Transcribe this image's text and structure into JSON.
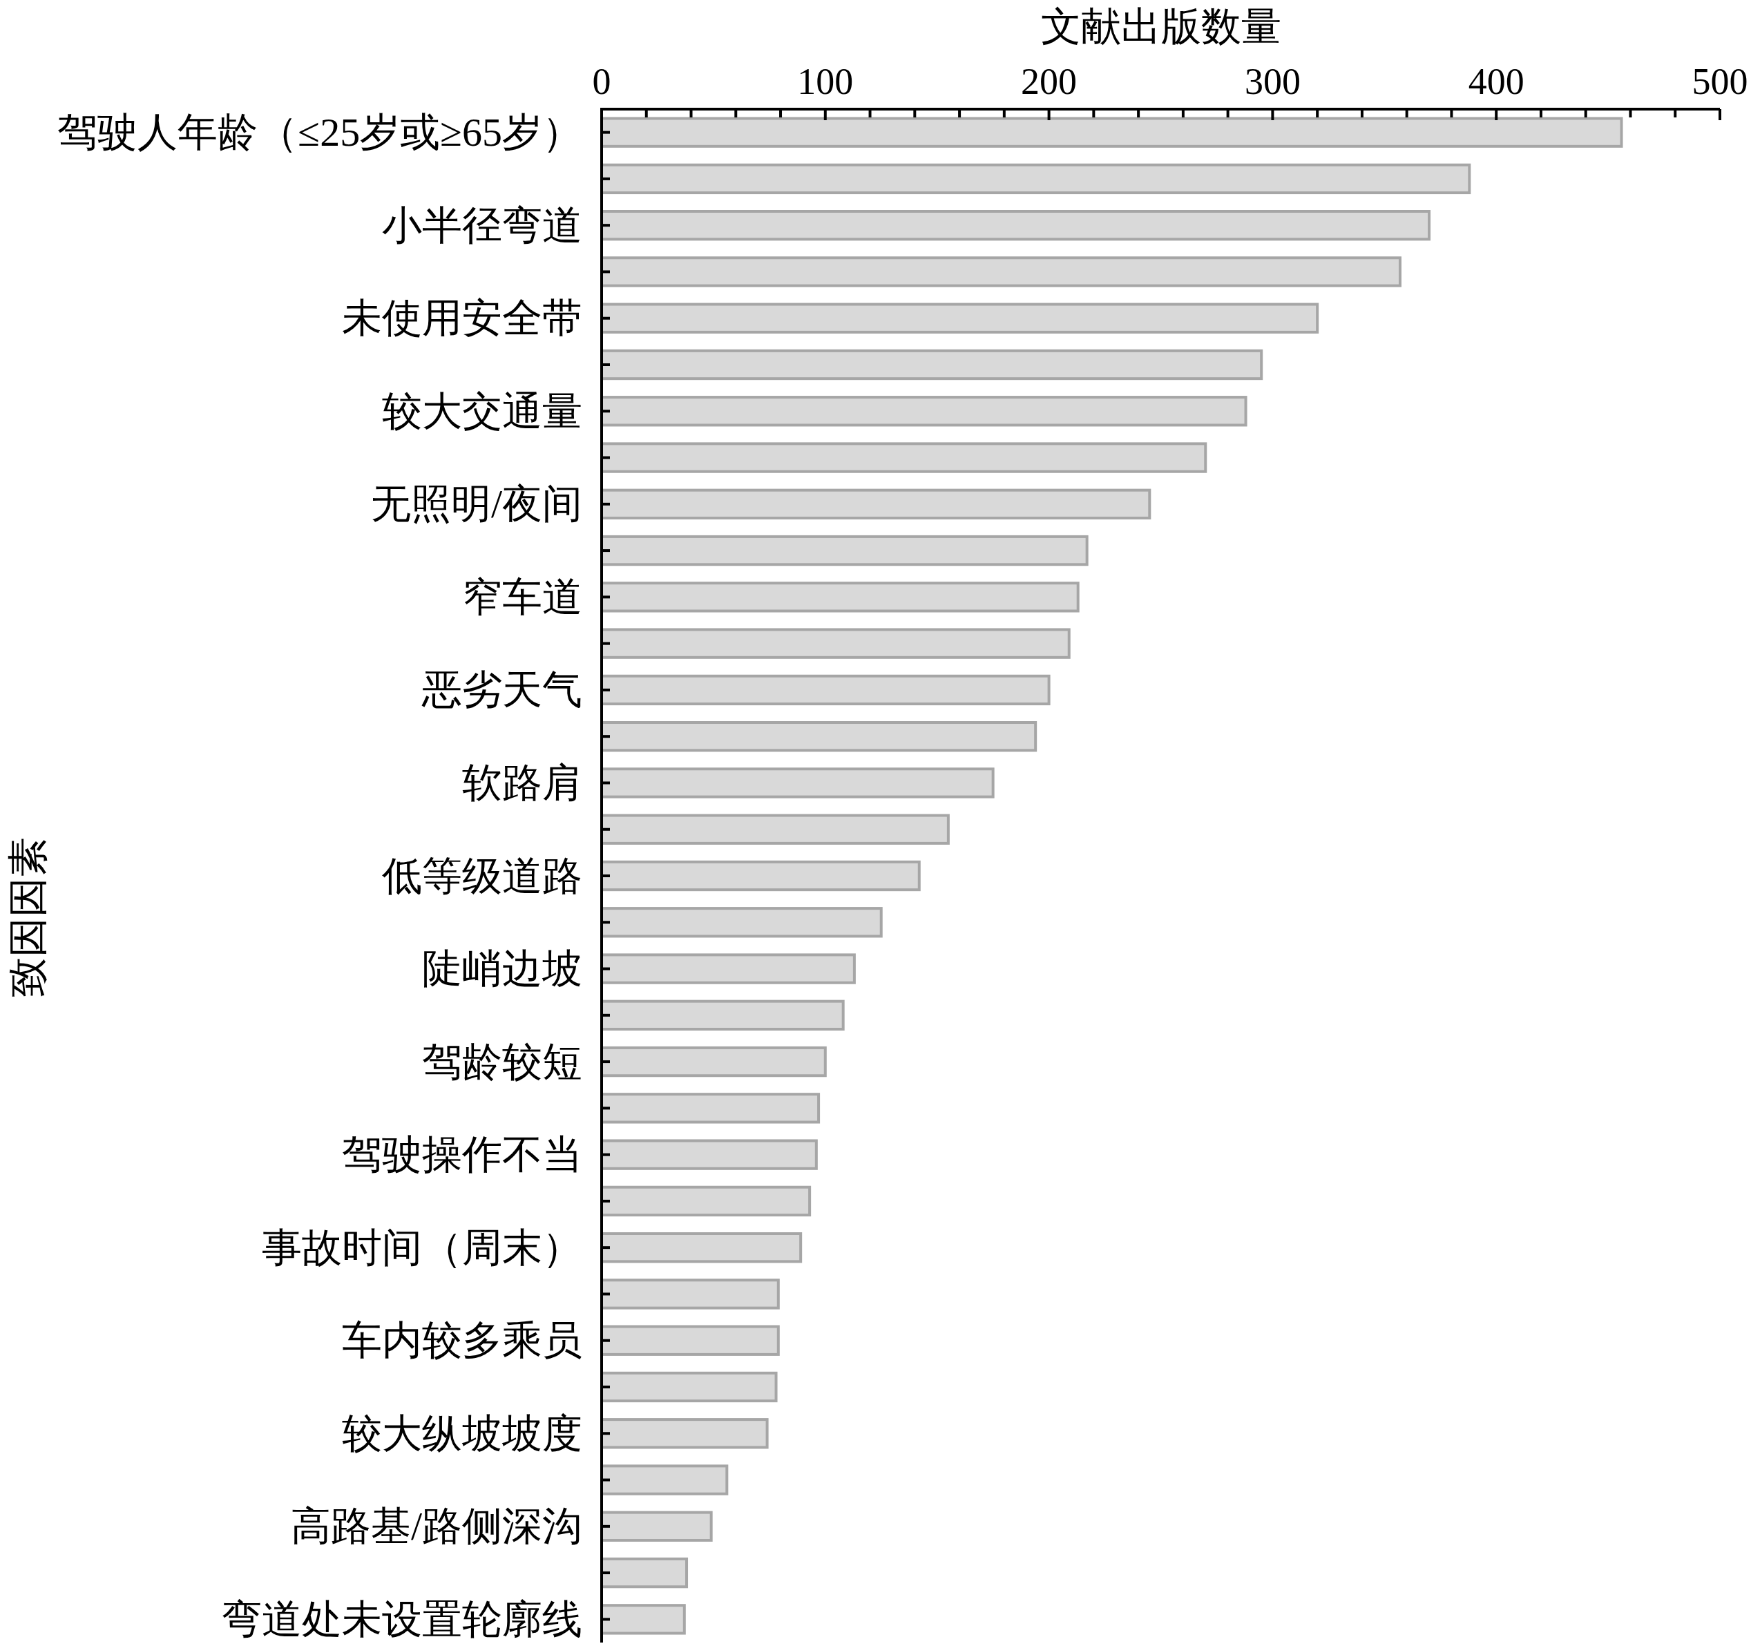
{
  "chart_data": {
    "type": "bar",
    "orientation": "horizontal",
    "xlabel": "文献出版数量",
    "ylabel": "致因因素",
    "categories": [
      "驾驶人年龄（≤25岁或≥65岁）",
      null,
      "小半径弯道",
      null,
      "未使用安全带",
      null,
      "较大交通量",
      null,
      "无照明/夜间",
      null,
      "窄车道",
      null,
      "恶劣天气",
      null,
      "软路肩",
      null,
      "低等级道路",
      null,
      "陡峭边坡",
      null,
      "驾龄较短",
      null,
      "驾驶操作不当",
      null,
      "事故时间（周末）",
      null,
      "车内较多乘员",
      null,
      "较大纵坡坡度",
      null,
      "高路基/路侧深沟",
      null,
      "弯道处未设置轮廓线"
    ],
    "values": [
      456,
      388,
      370,
      357,
      320,
      295,
      288,
      270,
      245,
      217,
      213,
      209,
      200,
      194,
      175,
      155,
      142,
      125,
      113,
      108,
      100,
      97,
      96,
      93,
      89,
      79,
      79,
      78,
      74,
      56,
      49,
      38,
      37
    ],
    "color": "#d9d9d9",
    "xlim": [
      0,
      500
    ],
    "xticks": [
      0,
      {
        "value": 20,
        "label": null
      },
      {
        "value": 40,
        "label": null
      },
      {
        "value": 60,
        "label": null
      },
      {
        "value": 80,
        "label": null
      },
      100,
      {
        "value": 120,
        "label": null
      },
      {
        "value": 140,
        "label": null
      },
      {
        "value": 160,
        "label": null
      },
      {
        "value": 180,
        "label": null
      },
      200,
      {
        "value": 220,
        "label": null
      },
      {
        "value": 240,
        "label": null
      },
      {
        "value": 260,
        "label": null
      },
      {
        "value": 280,
        "label": null
      },
      300,
      {
        "value": 320,
        "label": null
      },
      {
        "value": 340,
        "label": null
      },
      {
        "value": 360,
        "label": null
      },
      {
        "value": 380,
        "label": null
      },
      400,
      {
        "value": 420,
        "label": null
      },
      {
        "value": 440,
        "label": null
      },
      {
        "value": 460,
        "label": null
      },
      {
        "value": 480,
        "label": null
      },
      500
    ],
    "grid": false
  }
}
